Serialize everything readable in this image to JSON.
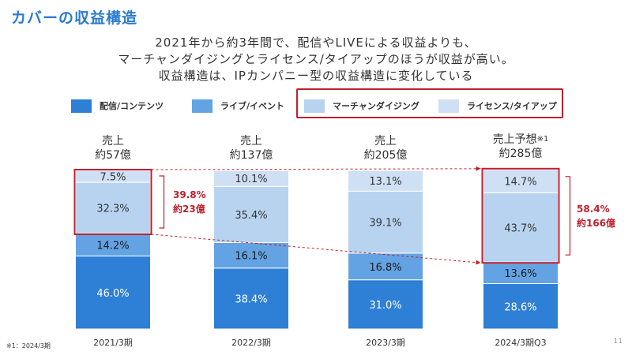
{
  "slide": {
    "title": "カバーの収益構造",
    "headline": [
      "2021年から約3年間で、配信やLIVEによる収益よりも、",
      "マーチャンダイジングとライセンス/タイアップのほうが収益が高い。",
      "収益構造は、IPカンパニー型の収益構造に変化している"
    ],
    "footnote": "※1：2024/3期",
    "page_number": "11"
  },
  "colors": {
    "haishin": "#2e7fd6",
    "live": "#63a3e4",
    "merch": "#b8d3f0",
    "license": "#cfe0f4",
    "highlight": "#c0202b"
  },
  "legend": [
    {
      "label": "配信/コンテンツ",
      "color": "#2e7fd6"
    },
    {
      "label": "ライブ/イベント",
      "color": "#63a3e4"
    },
    {
      "label": "マーチャンダイジング",
      "color": "#b8d3f0"
    },
    {
      "label": "ライセンス/タイアップ",
      "color": "#cfe0f4"
    }
  ],
  "totals": [
    {
      "label": "売上",
      "amount": "約57億",
      "sup": ""
    },
    {
      "label": "売上",
      "amount": "約137億",
      "sup": ""
    },
    {
      "label": "売上",
      "amount": "約205億",
      "sup": ""
    },
    {
      "label": "売上予想",
      "amount": "約285億",
      "sup": "※1"
    }
  ],
  "annotations": [
    {
      "percent": "39.8%",
      "amount": "約23億"
    },
    {
      "percent": "58.4%",
      "amount": "約166億"
    }
  ],
  "chart_data": {
    "type": "bar",
    "stacked": true,
    "normalized": true,
    "categories": [
      "2021/3期",
      "2022/3期",
      "2023/3期",
      "2024/3期Q3"
    ],
    "series": [
      {
        "name": "配信/コンテンツ",
        "values": [
          46.0,
          38.4,
          31.0,
          28.6
        ]
      },
      {
        "name": "ライブ/イベント",
        "values": [
          14.2,
          16.1,
          16.8,
          13.6
        ]
      },
      {
        "name": "マーチャンダイジング",
        "values": [
          32.3,
          35.4,
          39.1,
          43.7
        ]
      },
      {
        "name": "ライセンス/タイアップ",
        "values": [
          7.5,
          10.1,
          13.1,
          14.7
        ]
      }
    ],
    "data_labels": [
      [
        "46.0%",
        "38.4%",
        "31.0%",
        "28.6%"
      ],
      [
        "14.2%",
        "16.1%",
        "16.8%",
        "13.6%"
      ],
      [
        "32.3%",
        "35.4%",
        "39.1%",
        "43.7%"
      ],
      [
        "7.5%",
        "10.1%",
        "13.1%",
        "14.7%"
      ]
    ],
    "ylim": [
      0,
      100
    ],
    "highlight_categories": [
      0,
      3
    ],
    "highlight_series": [
      2,
      3
    ]
  }
}
